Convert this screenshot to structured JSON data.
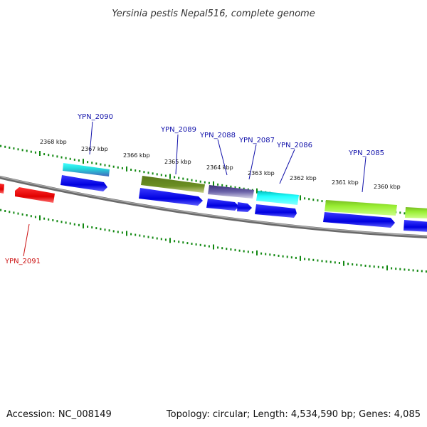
{
  "title": "Yersinia pestis Nepal516, complete genome",
  "footer": {
    "accession": "Accession: NC_008149",
    "summary": "Topology: circular; Length: 4,534,590 bp; Genes: 4,085"
  },
  "ruler": {
    "color": "#118811",
    "labels": [
      "2368 kbp",
      "2367 kbp",
      "2366 kbp",
      "2365 kbp",
      "2364 kbp",
      "2363 kbp",
      "2362 kbp",
      "2361 kbp",
      "2360 kbp"
    ]
  },
  "backbone_color": "#888888",
  "genes": [
    {
      "name": "YPN_2090",
      "color": "#22dddd",
      "label_color": "#1111aa"
    },
    {
      "name": "YPN_2089",
      "color": "#6b8e23",
      "label_color": "#1111aa"
    },
    {
      "name": "YPN_2088",
      "color": "#483d8b",
      "label_color": "#1111aa"
    },
    {
      "name": "YPN_2087",
      "color": "#1111aa",
      "label_color": "#1111aa"
    },
    {
      "name": "YPN_2086",
      "color": "#22eeee",
      "label_color": "#1111aa"
    },
    {
      "name": "YPN_2085",
      "color": "#99ee33",
      "label_color": "#1111aa"
    },
    {
      "name": "YPN_2091",
      "color": "#ee1111",
      "label_color": "#cc1111"
    }
  ],
  "cds_color": "#0000ee"
}
